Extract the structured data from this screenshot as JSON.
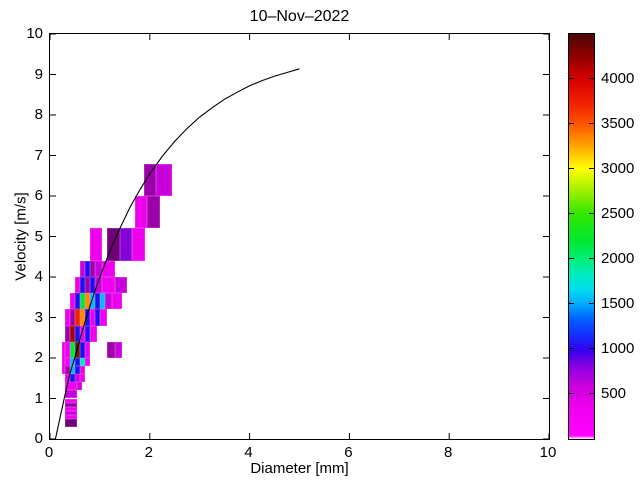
{
  "title": "10–Nov–2022",
  "axes": {
    "xlabel": "Diameter [mm]",
    "ylabel": "Velocity [m/s]",
    "xlim": [
      0,
      10
    ],
    "ylim": [
      0,
      10
    ],
    "xticks": [
      0,
      2,
      4,
      6,
      8,
      10
    ],
    "yticks": [
      0,
      1,
      2,
      3,
      4,
      5,
      6,
      7,
      8,
      9,
      10
    ]
  },
  "colorbar": {
    "min": 0,
    "max": 4500,
    "ticks": [
      500,
      1000,
      1500,
      2000,
      2500,
      3000,
      3500,
      4000
    ],
    "gradient_stops": [
      [
        0.0,
        "#ffffff"
      ],
      [
        0.008,
        "#ff00ff"
      ],
      [
        0.08,
        "#ee00ee"
      ],
      [
        0.13,
        "#cc00dd"
      ],
      [
        0.18,
        "#8800e0"
      ],
      [
        0.22,
        "#3300ee"
      ],
      [
        0.26,
        "#1133ff"
      ],
      [
        0.3,
        "#0066ff"
      ],
      [
        0.333,
        "#00aaff"
      ],
      [
        0.37,
        "#00ddee"
      ],
      [
        0.41,
        "#00eebb"
      ],
      [
        0.444,
        "#00ee77"
      ],
      [
        0.49,
        "#00e830"
      ],
      [
        0.556,
        "#33e800"
      ],
      [
        0.61,
        "#99ee00"
      ],
      [
        0.667,
        "#ffff00"
      ],
      [
        0.72,
        "#ffaa00"
      ],
      [
        0.778,
        "#ff5500"
      ],
      [
        0.83,
        "#f02000"
      ],
      [
        0.889,
        "#d40000"
      ],
      [
        0.95,
        "#8b0000"
      ],
      [
        1.0,
        "#4a0808"
      ]
    ]
  },
  "chart_data": {
    "type": "heatmap",
    "title": "10–Nov–2022",
    "xlabel": "Diameter [mm]",
    "ylabel": "Velocity [m/s]",
    "xlim": [
      0,
      10
    ],
    "ylim": [
      0,
      10
    ],
    "colorbar_range": [
      0,
      4500
    ],
    "palette": {
      "mg": {
        "color": "#ee00ee",
        "count": 250
      },
      "vi": {
        "color": "#c800dc",
        "count": 400
      },
      "pu": {
        "color": "#9c00a8",
        "count": 620
      },
      "dp": {
        "color": "#6e0078",
        "count": 520
      },
      "bp": {
        "color": "#8400d6",
        "count": 700
      },
      "bl": {
        "color": "#1a10f0",
        "count": 1050
      },
      "cy": {
        "color": "#00bbff",
        "count": 1550
      },
      "tc": {
        "color": "#00e8c8",
        "count": 1850
      },
      "gr": {
        "color": "#00e63c",
        "count": 2150
      },
      "or": {
        "color": "#ff8a00",
        "count": 3300
      },
      "rd": {
        "color": "#ec2200",
        "count": 3700
      },
      "dr": {
        "color": "#a80000",
        "count": 4100
      },
      "br": {
        "color": "#5e2000",
        "count": 4400
      }
    },
    "cells": [
      [
        1.875,
        2.125,
        6.0,
        6.8,
        "pu"
      ],
      [
        2.125,
        2.45,
        6.0,
        6.8,
        "vi"
      ],
      [
        1.7,
        1.95,
        5.2,
        6.0,
        "mg"
      ],
      [
        1.95,
        2.2,
        5.2,
        6.0,
        "pu"
      ],
      [
        0.8,
        1.05,
        4.4,
        5.2,
        "mg"
      ],
      [
        1.15,
        1.4,
        4.4,
        5.2,
        "dp"
      ],
      [
        1.4,
        1.65,
        4.4,
        5.2,
        "bp"
      ],
      [
        1.65,
        1.9,
        4.4,
        5.2,
        "mg"
      ],
      [
        0.6,
        0.7,
        4.0,
        4.4,
        "vi"
      ],
      [
        0.7,
        0.8,
        4.0,
        4.4,
        "bl"
      ],
      [
        0.8,
        0.9,
        4.0,
        4.4,
        "pu"
      ],
      [
        0.9,
        1.05,
        4.0,
        4.4,
        "vi"
      ],
      [
        1.05,
        1.3,
        4.0,
        4.4,
        "mg"
      ],
      [
        0.5,
        0.6,
        3.6,
        4.0,
        "mg"
      ],
      [
        0.6,
        0.7,
        3.6,
        4.0,
        "bl"
      ],
      [
        0.7,
        0.8,
        3.6,
        4.0,
        "pu"
      ],
      [
        0.8,
        0.9,
        3.6,
        4.0,
        "bl"
      ],
      [
        0.9,
        1.05,
        3.6,
        4.0,
        "vi"
      ],
      [
        1.05,
        1.3,
        3.6,
        4.0,
        "mg"
      ],
      [
        1.3,
        1.55,
        3.6,
        4.0,
        "vi"
      ],
      [
        0.4,
        0.5,
        3.2,
        3.6,
        "mg"
      ],
      [
        0.5,
        0.6,
        3.2,
        3.6,
        "bl"
      ],
      [
        0.6,
        0.7,
        3.2,
        3.6,
        "gr"
      ],
      [
        0.7,
        0.8,
        3.2,
        3.6,
        "or"
      ],
      [
        0.8,
        0.9,
        3.2,
        3.6,
        "cy"
      ],
      [
        0.9,
        1.0,
        3.2,
        3.6,
        "bl"
      ],
      [
        1.0,
        1.1,
        3.2,
        3.6,
        "cy"
      ],
      [
        1.1,
        1.25,
        3.2,
        3.6,
        "vi"
      ],
      [
        1.25,
        1.45,
        3.2,
        3.6,
        "mg"
      ],
      [
        0.3,
        0.4,
        2.8,
        3.2,
        "mg"
      ],
      [
        0.4,
        0.5,
        2.8,
        3.2,
        "pu"
      ],
      [
        0.5,
        0.6,
        2.8,
        3.2,
        "rd"
      ],
      [
        0.6,
        0.7,
        2.8,
        3.2,
        "or"
      ],
      [
        0.7,
        0.8,
        2.8,
        3.2,
        "bl"
      ],
      [
        0.8,
        0.9,
        2.8,
        3.2,
        "mg"
      ],
      [
        0.9,
        1.0,
        2.8,
        3.2,
        "bl"
      ],
      [
        1.0,
        1.15,
        2.8,
        3.2,
        "mg"
      ],
      [
        0.3,
        0.4,
        2.4,
        2.8,
        "pu"
      ],
      [
        0.4,
        0.5,
        2.4,
        2.8,
        "dr"
      ],
      [
        0.5,
        0.6,
        2.4,
        2.8,
        "bl"
      ],
      [
        0.6,
        0.7,
        2.4,
        2.8,
        "mg"
      ],
      [
        0.7,
        0.8,
        2.4,
        2.8,
        "bl"
      ],
      [
        0.8,
        0.95,
        2.4,
        2.8,
        "mg"
      ],
      [
        0.25,
        0.3,
        1.6,
        2.4,
        "mg"
      ],
      [
        0.3,
        0.4,
        2.0,
        2.4,
        "mg"
      ],
      [
        0.4,
        0.5,
        2.0,
        2.4,
        "gr"
      ],
      [
        0.5,
        0.6,
        2.0,
        2.4,
        "br"
      ],
      [
        0.6,
        0.7,
        2.0,
        2.4,
        "bl"
      ],
      [
        0.7,
        0.8,
        2.0,
        2.4,
        "mg"
      ],
      [
        1.15,
        1.3,
        2.0,
        2.4,
        "pu"
      ],
      [
        1.3,
        1.45,
        2.0,
        2.4,
        "vi"
      ],
      [
        0.3,
        0.4,
        1.8,
        2.0,
        "mg"
      ],
      [
        0.4,
        0.5,
        1.8,
        2.0,
        "cy"
      ],
      [
        0.5,
        0.6,
        1.8,
        2.0,
        "bl"
      ],
      [
        0.6,
        0.7,
        1.8,
        2.0,
        "tc"
      ],
      [
        0.7,
        0.8,
        1.8,
        2.0,
        "mg"
      ],
      [
        0.3,
        0.4,
        1.6,
        1.8,
        "pu"
      ],
      [
        0.4,
        0.5,
        1.6,
        1.8,
        "cy"
      ],
      [
        0.5,
        0.6,
        1.6,
        1.8,
        "bl"
      ],
      [
        0.6,
        0.7,
        1.6,
        1.8,
        "mg"
      ],
      [
        0.3,
        0.4,
        1.4,
        1.6,
        "mg"
      ],
      [
        0.4,
        0.5,
        1.4,
        1.6,
        "bl"
      ],
      [
        0.5,
        0.6,
        1.4,
        1.6,
        "vi"
      ],
      [
        0.6,
        0.7,
        1.4,
        1.6,
        "mg"
      ],
      [
        0.3,
        0.55,
        1.2,
        1.4,
        "mg"
      ],
      [
        0.55,
        0.65,
        1.2,
        1.4,
        "vi"
      ],
      [
        0.3,
        0.55,
        1.0,
        1.2,
        "vi"
      ],
      [
        0.3,
        0.55,
        0.9,
        1.0,
        "mg"
      ],
      [
        0.3,
        0.55,
        0.8,
        0.9,
        "pu"
      ],
      [
        0.3,
        0.55,
        0.7,
        0.8,
        "mg"
      ],
      [
        0.3,
        0.55,
        0.6,
        0.7,
        "vi"
      ],
      [
        0.3,
        0.55,
        0.5,
        0.6,
        "mg"
      ],
      [
        0.3,
        0.55,
        0.3,
        0.5,
        "dp"
      ]
    ],
    "curve": {
      "name": "terminal-velocity-curve",
      "color": "#000000",
      "points": [
        [
          0.11,
          0.01
        ],
        [
          0.2,
          0.52
        ],
        [
          0.3,
          1.09
        ],
        [
          0.4,
          1.63
        ],
        [
          0.5,
          2.02
        ],
        [
          0.6,
          2.46
        ],
        [
          0.7,
          2.88
        ],
        [
          0.8,
          3.28
        ],
        [
          0.9,
          3.65
        ],
        [
          1.0,
          4.0
        ],
        [
          1.2,
          4.64
        ],
        [
          1.4,
          5.2
        ],
        [
          1.6,
          5.71
        ],
        [
          1.8,
          6.15
        ],
        [
          2.0,
          6.55
        ],
        [
          2.25,
          6.98
        ],
        [
          2.5,
          7.35
        ],
        [
          2.75,
          7.67
        ],
        [
          3.0,
          7.95
        ],
        [
          3.25,
          8.18
        ],
        [
          3.5,
          8.39
        ],
        [
          3.75,
          8.56
        ],
        [
          4.0,
          8.72
        ],
        [
          4.25,
          8.85
        ],
        [
          4.5,
          8.96
        ],
        [
          4.75,
          9.05
        ],
        [
          5.0,
          9.14
        ]
      ]
    }
  }
}
